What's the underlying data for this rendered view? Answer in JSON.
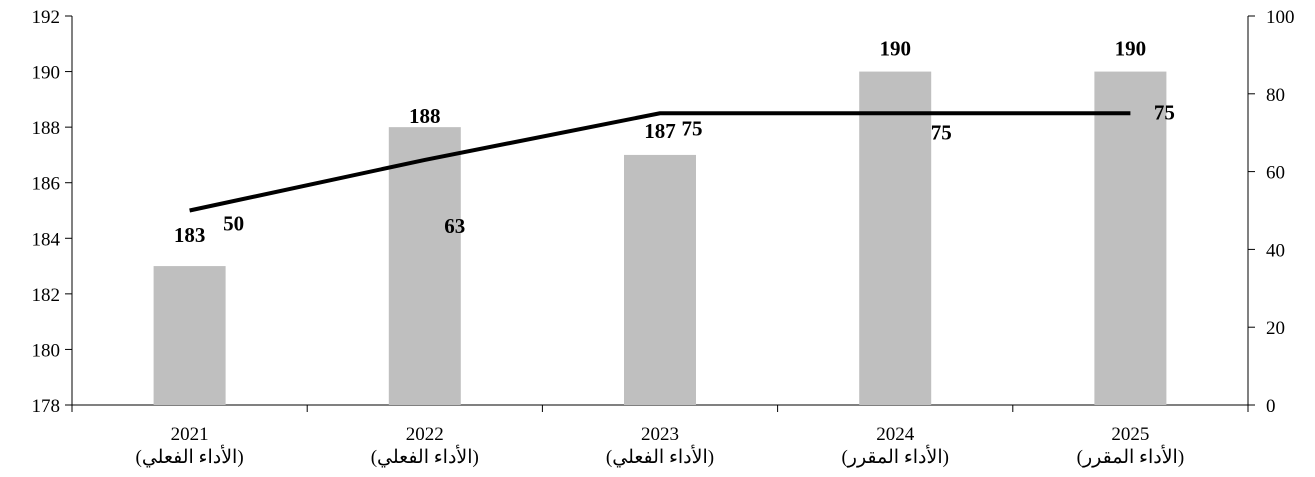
{
  "chart_data": {
    "type": "bar",
    "categories": [
      {
        "year": "2021",
        "note": "(الأداء الفعلي)"
      },
      {
        "year": "2022",
        "note": "(الأداء الفعلي)"
      },
      {
        "year": "2023",
        "note": "(الأداء الفعلي)"
      },
      {
        "year": "2024",
        "note": "(الأداء المقرر)"
      },
      {
        "year": "2025",
        "note": "(الأداء المقرر)"
      }
    ],
    "series": [
      {
        "type": "bar",
        "axis": "left",
        "color": "#bfbfbf",
        "values": [
          183,
          188,
          187,
          190,
          190
        ]
      },
      {
        "type": "line",
        "axis": "right",
        "color": "#000000",
        "values": [
          50,
          63,
          75,
          75,
          75
        ]
      }
    ],
    "left_axis": {
      "min": 178,
      "max": 192,
      "step": 2,
      "ticks": [
        "178",
        "180",
        "182",
        "184",
        "186",
        "188",
        "190",
        "192"
      ]
    },
    "right_axis": {
      "min": 0,
      "max": 100,
      "step": 20,
      "ticks": [
        "0",
        "20",
        "40",
        "60",
        "80",
        "100"
      ]
    },
    "bar_labels": [
      "183",
      "188",
      "187",
      "190",
      "190"
    ],
    "line_labels": [
      "50",
      "63",
      "75",
      "75",
      "75"
    ],
    "grid": false,
    "legend": "none",
    "title": "",
    "xlabel": "",
    "ylabel": ""
  }
}
